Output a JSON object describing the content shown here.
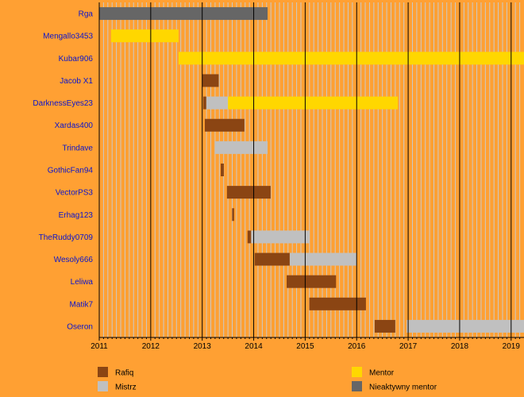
{
  "chart_data": {
    "type": "timeline",
    "title": "",
    "xlabel": "",
    "ylabel": "",
    "xlim": [
      2011.0,
      2019.25
    ],
    "x_ticks": [
      "2011",
      "2012",
      "2013",
      "2014",
      "2015",
      "2016",
      "2017",
      "2018",
      "2019"
    ],
    "grid": {
      "major": "yearly",
      "minor": "monthly"
    },
    "legend_position": "bottom",
    "roles": [
      {
        "key": "rafiq",
        "label": "Rafiq",
        "color": "#8b4513"
      },
      {
        "key": "mistrz",
        "label": "Mistrz",
        "color": "#c0c0c0"
      },
      {
        "key": "mentor",
        "label": "Mentor",
        "color": "#ffd700"
      },
      {
        "key": "inactive",
        "label": "Nieaktywny mentor",
        "color": "#666666"
      }
    ],
    "users": [
      {
        "name": "Rga",
        "periods": [
          {
            "role": "inactive",
            "start": 2011.0,
            "end": 2014.27
          }
        ]
      },
      {
        "name": "Mengallo3453",
        "periods": [
          {
            "role": "mentor",
            "start": 2011.23,
            "end": 2012.54
          }
        ]
      },
      {
        "name": "Kubar906",
        "periods": [
          {
            "role": "mentor",
            "start": 2012.54,
            "end": 2019.25
          }
        ]
      },
      {
        "name": "Jacob X1",
        "periods": [
          {
            "role": "rafiq",
            "start": 2013.0,
            "end": 2013.32
          }
        ]
      },
      {
        "name": "DarknessEyes23",
        "periods": [
          {
            "role": "rafiq",
            "start": 2013.02,
            "end": 2013.08
          },
          {
            "role": "mistrz",
            "start": 2013.08,
            "end": 2013.5
          },
          {
            "role": "mentor",
            "start": 2013.5,
            "end": 2016.8
          }
        ]
      },
      {
        "name": "Xardas400",
        "periods": [
          {
            "role": "rafiq",
            "start": 2013.05,
            "end": 2013.82
          }
        ]
      },
      {
        "name": "Trindave",
        "periods": [
          {
            "role": "mistrz",
            "start": 2013.24,
            "end": 2014.27
          }
        ]
      },
      {
        "name": "GothicFan94",
        "periods": [
          {
            "role": "rafiq",
            "start": 2013.36,
            "end": 2013.42
          }
        ]
      },
      {
        "name": "VectorPS3",
        "periods": [
          {
            "role": "rafiq",
            "start": 2013.48,
            "end": 2014.33
          }
        ]
      },
      {
        "name": "Erhag123",
        "periods": [
          {
            "role": "rafiq",
            "start": 2013.58,
            "end": 2013.62
          }
        ]
      },
      {
        "name": "TheRuddy0709",
        "periods": [
          {
            "role": "rafiq",
            "start": 2013.88,
            "end": 2013.95
          },
          {
            "role": "mistrz",
            "start": 2013.95,
            "end": 2015.08
          }
        ]
      },
      {
        "name": "Wesoly666",
        "periods": [
          {
            "role": "rafiq",
            "start": 2014.02,
            "end": 2014.7
          },
          {
            "role": "mistrz",
            "start": 2014.7,
            "end": 2016.0
          }
        ]
      },
      {
        "name": "Leliwa",
        "periods": [
          {
            "role": "rafiq",
            "start": 2014.64,
            "end": 2015.6
          }
        ]
      },
      {
        "name": "Matik7",
        "periods": [
          {
            "role": "rafiq",
            "start": 2015.08,
            "end": 2016.18
          }
        ]
      },
      {
        "name": "Oseron",
        "periods": [
          {
            "role": "rafiq",
            "start": 2016.35,
            "end": 2016.75
          },
          {
            "role": "mistrz",
            "start": 2016.97,
            "end": 2019.25
          }
        ]
      }
    ]
  }
}
